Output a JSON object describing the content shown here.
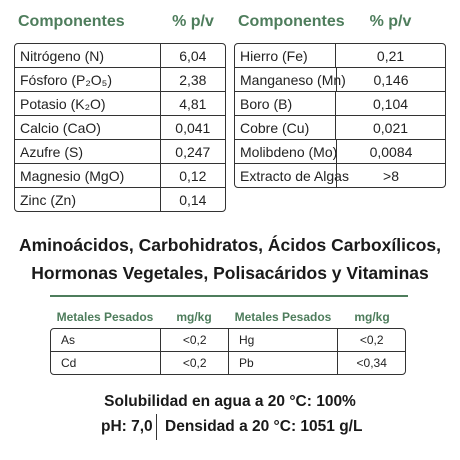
{
  "left_table": {
    "headers": [
      "Componentes",
      "% p/v"
    ],
    "rows": [
      [
        "Nitrógeno (N)",
        "6,04"
      ],
      [
        "Fósforo (P₂O₅)",
        "2,38"
      ],
      [
        "Potasio (K₂O)",
        "4,81"
      ],
      [
        "Calcio (CaO)",
        "0,041"
      ],
      [
        "Azufre (S)",
        "0,247"
      ],
      [
        "Magnesio (MgO)",
        "0,12"
      ],
      [
        "Zinc (Zn)",
        "0,14"
      ]
    ]
  },
  "right_table": {
    "headers": [
      "Componentes",
      "% p/v"
    ],
    "rows": [
      [
        "Hierro (Fe)",
        "0,21"
      ],
      [
        "Manganeso (Mn)",
        "0,146"
      ],
      [
        "Boro (B)",
        "0,104"
      ],
      [
        "Cobre (Cu)",
        "0,021"
      ],
      [
        "Molibdeno (Mo)",
        "0,0084"
      ],
      [
        "Extracto de Algas",
        ">8"
      ]
    ]
  },
  "description": [
    "Aminoácidos, Carbohidratos, Ácidos Carboxílicos,",
    "Hormonas Vegetales, Polisacáridos y Vitaminas"
  ],
  "metals_table": {
    "headers": [
      "Metales Pesados",
      "mg/kg",
      "Metales Pesados",
      "mg/kg"
    ],
    "rows": [
      [
        "As",
        "<0,2",
        "Hg",
        "<0,2"
      ],
      [
        "Cd",
        "<0,2",
        "Pb",
        "<0,34"
      ]
    ]
  },
  "footer": {
    "solubility": "Solubilidad en agua a 20 °C: 100%",
    "ph": "pH: 7,0",
    "density": "Densidad a 20 °C: 1051 g/L"
  }
}
